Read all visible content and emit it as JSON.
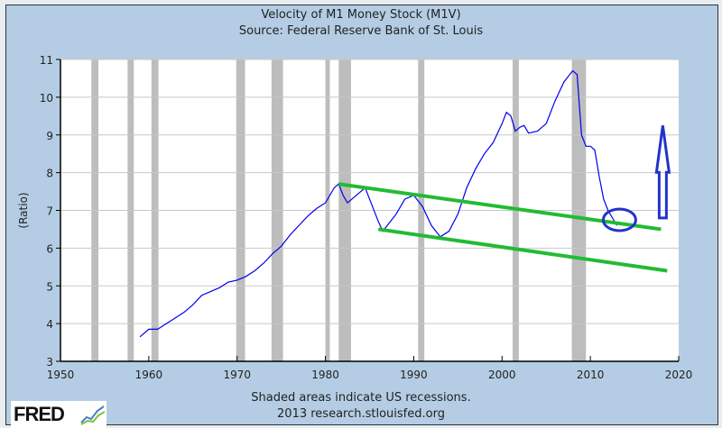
{
  "chart_data": {
    "type": "line",
    "title": "Velocity of M1 Money Stock (M1V)",
    "subtitle": "Source: Federal Reserve Bank of St. Louis",
    "xlabel": "",
    "ylabel": "(Ratio)",
    "xlim": [
      1950,
      2020
    ],
    "ylim": [
      3,
      11
    ],
    "xticks": [
      1950,
      1960,
      1970,
      1980,
      1990,
      2000,
      2010,
      2020
    ],
    "yticks": [
      3,
      4,
      5,
      6,
      7,
      8,
      9,
      10,
      11
    ],
    "grid": true,
    "series_color": "#0000ee",
    "x": [
      1959,
      1960,
      1961,
      1962,
      1963,
      1964,
      1965,
      1966,
      1967,
      1968,
      1969,
      1970,
      1971,
      1972,
      1973,
      1974,
      1975,
      1976,
      1977,
      1978,
      1979,
      1980,
      1981,
      1981.5,
      1982,
      1982.5,
      1983,
      1984,
      1984.5,
      1985,
      1986,
      1986.5,
      1987,
      1988,
      1989,
      1990,
      1991,
      1992,
      1993,
      1994,
      1995,
      1996,
      1997,
      1998,
      1999,
      2000,
      2000.5,
      2001,
      2001.5,
      2002,
      2002.5,
      2003,
      2004,
      2005,
      2006,
      2007,
      2008,
      2008.5,
      2009,
      2009.5,
      2010,
      2010.5,
      2011,
      2011.5,
      2012,
      2012.5,
      2013
    ],
    "y": [
      3.65,
      3.85,
      3.85,
      4.0,
      4.15,
      4.3,
      4.5,
      4.75,
      4.85,
      4.95,
      5.1,
      5.15,
      5.25,
      5.4,
      5.6,
      5.85,
      6.05,
      6.35,
      6.6,
      6.85,
      7.05,
      7.2,
      7.6,
      7.7,
      7.4,
      7.2,
      7.3,
      7.5,
      7.6,
      7.3,
      6.7,
      6.45,
      6.6,
      6.9,
      7.3,
      7.4,
      7.1,
      6.6,
      6.3,
      6.45,
      6.9,
      7.6,
      8.1,
      8.5,
      8.8,
      9.3,
      9.6,
      9.5,
      9.1,
      9.2,
      9.25,
      9.05,
      9.1,
      9.3,
      9.9,
      10.4,
      10.7,
      10.6,
      9.0,
      8.7,
      8.7,
      8.6,
      7.9,
      7.3,
      7.0,
      6.8,
      6.6
    ],
    "recessions": [
      [
        1953.5,
        1954.3
      ],
      [
        1957.6,
        1958.3
      ],
      [
        1960.3,
        1961.1
      ],
      [
        1969.9,
        1970.9
      ],
      [
        1973.9,
        1975.2
      ],
      [
        1980.0,
        1980.5
      ],
      [
        1981.5,
        1982.9
      ],
      [
        1990.5,
        1991.2
      ],
      [
        2001.2,
        2001.9
      ],
      [
        2007.9,
        2009.5
      ]
    ],
    "annotations": {
      "trend_color": "#22bb33",
      "trend_lines": [
        [
          [
            1981.5,
            7.7
          ],
          [
            2018,
            6.5
          ]
        ],
        [
          [
            1986,
            6.5
          ],
          [
            2018.7,
            5.4
          ]
        ]
      ],
      "circle_color": "#2233cc",
      "circle_center": [
        2013.3,
        6.75
      ],
      "arrow_color": "#2233cc",
      "arrow": [
        [
          2018.2,
          6.8
        ],
        [
          2018.2,
          9.25
        ]
      ]
    }
  },
  "footer": {
    "note": "Shaded areas indicate US recessions.",
    "credit": "2013 research.stlouisfed.org",
    "logo": "FRED"
  }
}
